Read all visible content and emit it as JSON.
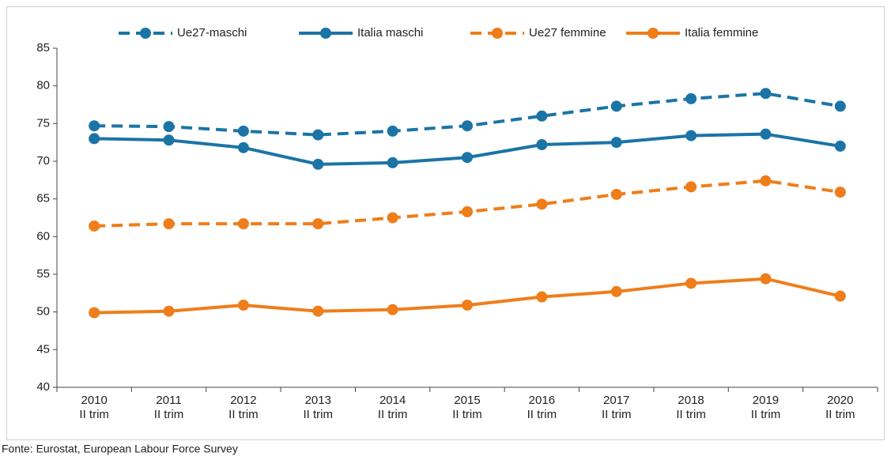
{
  "chart_data": {
    "type": "line",
    "source": "Fonte: Eurostat, European Labour Force Survey",
    "categories": [
      [
        "2010",
        "II trim"
      ],
      [
        "2011",
        "II trim"
      ],
      [
        "2012",
        "II trim"
      ],
      [
        "2013",
        "II trim"
      ],
      [
        "2014",
        "II trim"
      ],
      [
        "2015",
        "II trim"
      ],
      [
        "2016",
        "II trim"
      ],
      [
        "2017",
        "II trim"
      ],
      [
        "2018",
        "II trim"
      ],
      [
        "2019",
        "II trim"
      ],
      [
        "2020",
        "II trim"
      ]
    ],
    "series": [
      {
        "name": "Ue27-maschi",
        "color": "#1b74a6",
        "dashed": true,
        "values": [
          74.7,
          74.6,
          74.0,
          73.5,
          74.0,
          74.7,
          76.0,
          77.3,
          78.3,
          79.0,
          77.3
        ]
      },
      {
        "name": "Italia maschi",
        "color": "#1b74a6",
        "dashed": false,
        "values": [
          73.0,
          72.8,
          71.8,
          69.6,
          69.8,
          70.5,
          72.2,
          72.5,
          73.4,
          73.6,
          72.0
        ]
      },
      {
        "name": "Ue27 femmine",
        "color": "#ef7d1a",
        "dashed": true,
        "values": [
          61.4,
          61.7,
          61.7,
          61.7,
          62.5,
          63.3,
          64.3,
          65.6,
          66.6,
          67.4,
          65.9
        ]
      },
      {
        "name": "Italia femmine",
        "color": "#ef7d1a",
        "dashed": false,
        "values": [
          49.9,
          50.1,
          50.9,
          50.1,
          50.3,
          50.9,
          52.0,
          52.7,
          53.8,
          54.4,
          52.1
        ]
      }
    ],
    "ylim": [
      40,
      85
    ],
    "yticks": [
      40,
      45,
      50,
      55,
      60,
      65,
      70,
      75,
      80,
      85
    ],
    "grid": false,
    "legend": "top"
  }
}
